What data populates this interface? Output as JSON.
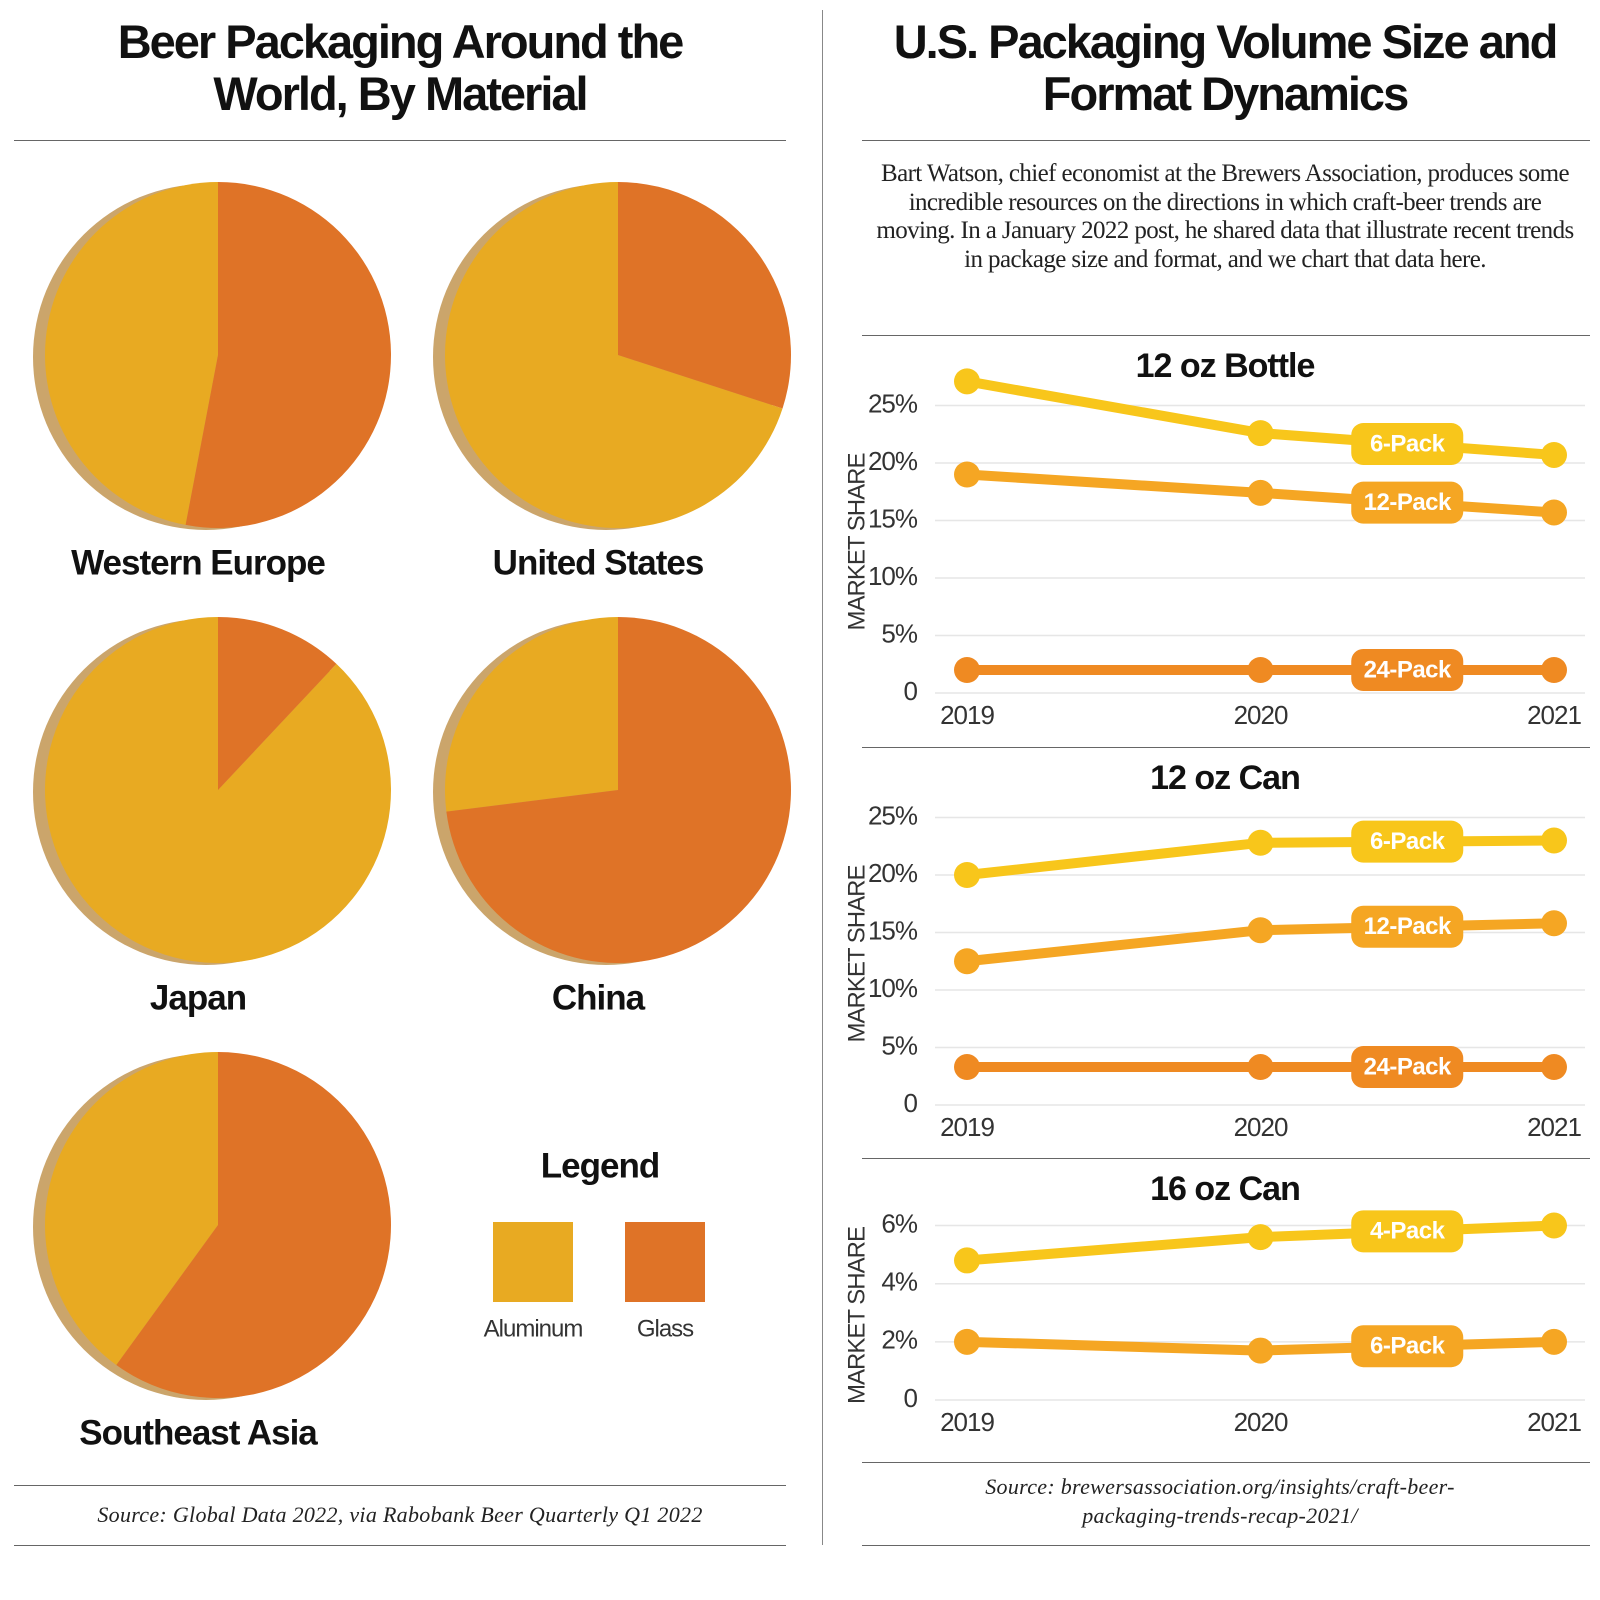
{
  "left": {
    "title": "Beer Packaging Around the World, By Material",
    "legend_title": "Legend",
    "source": "Source: Global Data 2022, via Rabobank Beer Quarterly Q1 2022"
  },
  "right": {
    "title": "U.S. Packaging Volume Size and Format Dynamics",
    "intro": "Bart Watson, chief economist at the Brewers Association, produces some incredible resources on the directions in which craft-beer trends are moving. In a January 2022 post, he shared data that illustrate recent trends in package size and format, and we chart that data here.",
    "source": "Source: brewersassociation.org/insights/craft-beer-packaging-trends-recap-2021/"
  },
  "chart_data": [
    {
      "type": "pie",
      "title": "Western Europe",
      "categories": [
        "Aluminum",
        "Glass"
      ],
      "values": [
        47,
        53
      ],
      "colors": [
        "#e8aa22",
        "#df7327"
      ]
    },
    {
      "type": "pie",
      "title": "United States",
      "categories": [
        "Aluminum",
        "Glass"
      ],
      "values": [
        70,
        30
      ],
      "colors": [
        "#e8aa22",
        "#df7327"
      ]
    },
    {
      "type": "pie",
      "title": "Japan",
      "categories": [
        "Aluminum",
        "Glass"
      ],
      "values": [
        88,
        12
      ],
      "colors": [
        "#e8aa22",
        "#df7327"
      ]
    },
    {
      "type": "pie",
      "title": "China",
      "categories": [
        "Aluminum",
        "Glass"
      ],
      "values": [
        27,
        73
      ],
      "colors": [
        "#e8aa22",
        "#df7327"
      ]
    },
    {
      "type": "pie",
      "title": "Southeast Asia",
      "categories": [
        "Aluminum",
        "Glass"
      ],
      "values": [
        40,
        60
      ],
      "colors": [
        "#e8aa22",
        "#df7327"
      ]
    },
    {
      "type": "line",
      "title": "12 oz Bottle",
      "y_label": "MARKET SHARE",
      "categories": [
        "2019",
        "2020",
        "2021"
      ],
      "series": [
        {
          "name": "6-Pack",
          "color": "#f8c61b",
          "values": [
            27.1,
            22.6,
            20.7
          ]
        },
        {
          "name": "12-Pack",
          "color": "#f5a623",
          "values": [
            19.0,
            17.4,
            15.7
          ]
        },
        {
          "name": "24-Pack",
          "color": "#ef8a22",
          "values": [
            2.0,
            2.0,
            2.0
          ]
        }
      ],
      "ylim": [
        0,
        28
      ],
      "yticks": [
        0,
        {
          "value": 5,
          "label": "5%"
        },
        {
          "value": 10,
          "label": "10%"
        },
        {
          "value": 15,
          "label": "15%"
        },
        {
          "value": 20,
          "label": "20%"
        },
        {
          "value": 25,
          "label": "25%"
        }
      ],
      "grid": true
    },
    {
      "type": "line",
      "title": "12 oz Can",
      "y_label": "MARKET SHARE",
      "categories": [
        "2019",
        "2020",
        "2021"
      ],
      "series": [
        {
          "name": "6-Pack",
          "color": "#f8c61b",
          "values": [
            20.0,
            22.8,
            23.0
          ]
        },
        {
          "name": "12-Pack",
          "color": "#f5a623",
          "values": [
            12.5,
            15.2,
            15.8
          ]
        },
        {
          "name": "24-Pack",
          "color": "#ef8a22",
          "values": [
            3.3,
            3.3,
            3.3
          ]
        }
      ],
      "ylim": [
        0,
        28
      ],
      "yticks": [
        0,
        {
          "value": 5,
          "label": "5%"
        },
        {
          "value": 10,
          "label": "10%"
        },
        {
          "value": 15,
          "label": "15%"
        },
        {
          "value": 20,
          "label": "20%"
        },
        {
          "value": 25,
          "label": "25%"
        }
      ],
      "grid": true
    },
    {
      "type": "line",
      "title": "16 oz Can",
      "y_label": "MARKET SHARE",
      "categories": [
        "2019",
        "2020",
        "2021"
      ],
      "series": [
        {
          "name": "4-Pack",
          "color": "#f8c61b",
          "values": [
            4.8,
            5.6,
            6.0
          ]
        },
        {
          "name": "6-Pack",
          "color": "#f5a623",
          "values": [
            2.0,
            1.7,
            2.0
          ]
        }
      ],
      "ylim": [
        0,
        6.5
      ],
      "yticks": [
        0,
        {
          "value": 2,
          "label": "2%"
        },
        {
          "value": 4,
          "label": "4%"
        },
        {
          "value": 6,
          "label": "6%"
        }
      ],
      "grid": true
    }
  ]
}
